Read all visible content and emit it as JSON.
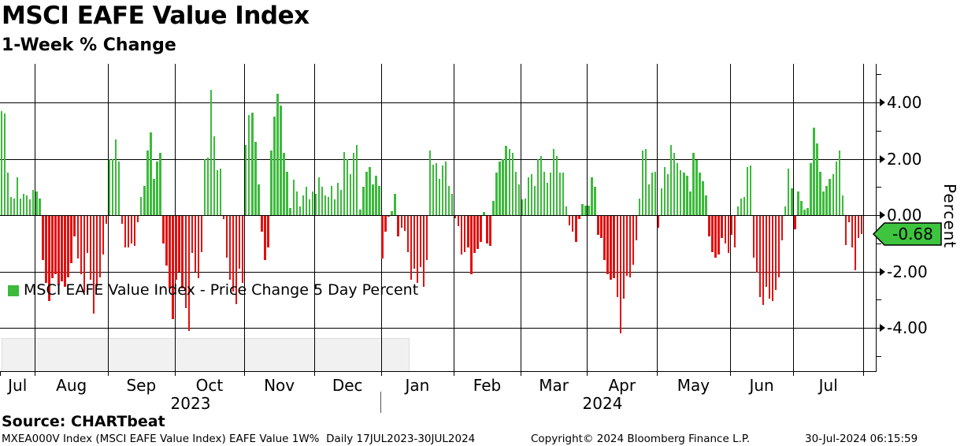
{
  "title": "MSCI EAFE Value Index",
  "subtitle": "1-Week % Change",
  "legend": {
    "label": "MSCI EAFE Value Index - Price Change 5 Day Percent"
  },
  "y_axis": {
    "title": "Percent",
    "tick_labels": [
      "4.00",
      "2.00",
      "0.00",
      "-2.00",
      "-4.00"
    ],
    "last_value_label": "-0.68"
  },
  "x_axis": {
    "year_labels": [
      "2023",
      "2024"
    ]
  },
  "footer": {
    "source": "Source: CHARTbeat",
    "description": "MXEA000V Index (MSCI EAFE Value Index) EAFE Value 1W%  Daily 17JUL2023-30JUL2024",
    "copyright": "Copyright© 2024 Bloomberg Finance L.P.",
    "timestamp": "30-Jul-2024 06:15:59"
  },
  "colors": {
    "positive": "#3cba3c",
    "negative": "#e21010",
    "badge_green": "#3ec43e",
    "grid": "#000000"
  },
  "chart_data": {
    "type": "bar",
    "title": "MSCI EAFE Value Index",
    "subtitle": "1-Week % Change",
    "ylabel": "Percent",
    "ylim": [
      -5.5,
      5.4
    ],
    "y_major_ticks": [
      4,
      2,
      0,
      -2,
      -4
    ],
    "y_minor_ticks": [
      5,
      3,
      1,
      -1,
      -3,
      -5
    ],
    "grid": true,
    "legend_position": "bottom-left",
    "series_name": "MSCI EAFE Value Index - Price Change 5 Day Percent",
    "date_range": "17JUL2023-30JUL2024",
    "last_value": -0.68,
    "months": [
      {
        "label": "Jul",
        "year": "2023",
        "days": 11
      },
      {
        "label": "Aug",
        "year": "2023",
        "days": 23
      },
      {
        "label": "Sep",
        "year": "2023",
        "days": 21
      },
      {
        "label": "Oct",
        "year": "2023",
        "days": 22
      },
      {
        "label": "Nov",
        "year": "2023",
        "days": 22
      },
      {
        "label": "Dec",
        "year": "2023",
        "days": 21
      },
      {
        "label": "Jan",
        "year": "2024",
        "days": 23
      },
      {
        "label": "Feb",
        "year": "2024",
        "days": 21
      },
      {
        "label": "Mar",
        "year": "2024",
        "days": 21
      },
      {
        "label": "Apr",
        "year": "2024",
        "days": 22
      },
      {
        "label": "May",
        "year": "2024",
        "days": 23
      },
      {
        "label": "Jun",
        "year": "2024",
        "days": 20
      },
      {
        "label": "Jul",
        "year": "2024",
        "days": 22
      }
    ],
    "values": [
      3.7,
      3.6,
      1.5,
      0.65,
      0.6,
      1.35,
      0.6,
      0.75,
      0.7,
      0.55,
      0.9,
      0.85,
      0.6,
      -1.6,
      -2.4,
      -3.05,
      -2.25,
      -2.1,
      -2.5,
      -2.35,
      -2.55,
      -2.2,
      -1.7,
      -0.75,
      -1.55,
      -2.1,
      -2.75,
      -1.35,
      -2.3,
      -3.5,
      -2.55,
      -2.2,
      -1.4,
      -0.3,
      2.0,
      2.0,
      2.7,
      1.9,
      -0.3,
      -1.15,
      -1.15,
      -1.0,
      -1.1,
      -0.25,
      0.65,
      1.05,
      2.3,
      2.95,
      1.3,
      1.9,
      2.2,
      -1.0,
      -1.8,
      -2.6,
      -3.7,
      -2.3,
      -2.0,
      -2.6,
      -3.3,
      -4.1,
      -1.35,
      -2.0,
      -2.25,
      -1.3,
      2.0,
      2.05,
      4.45,
      2.8,
      1.6,
      1.65,
      -0.15,
      -1.5,
      -2.3,
      -2.7,
      -3.15,
      -1.9,
      -2.4,
      2.5,
      3.55,
      3.65,
      2.6,
      1.1,
      -0.6,
      -1.6,
      -1.15,
      2.3,
      3.5,
      4.3,
      3.9,
      2.2,
      1.55,
      0.25,
      1.25,
      0.85,
      0.3,
      0.7,
      1.0,
      0.55,
      0.85,
      0.75,
      1.35,
      1.0,
      0.7,
      0.65,
      1.05,
      0.55,
      1.15,
      0.9,
      2.25,
      2.0,
      1.45,
      2.2,
      2.5,
      0.2,
      1.0,
      1.55,
      1.7,
      1.1,
      1.4,
      1.05,
      -1.55,
      -0.6,
      -0.05,
      0.15,
      0.75,
      -0.75,
      -0.45,
      -0.55,
      -1.3,
      -2.3,
      -1.9,
      -2.4,
      -1.85,
      -2.55,
      -1.6,
      2.3,
      1.8,
      1.85,
      1.3,
      1.75,
      1.9,
      1.05,
      0.75,
      -0.1,
      -0.4,
      -1.4,
      -1.3,
      -1.15,
      -2.1,
      -1.35,
      -1.2,
      -0.95,
      0.1,
      -1.0,
      -1.1,
      0.5,
      1.5,
      1.9,
      2.0,
      2.45,
      2.35,
      2.2,
      1.55,
      1.1,
      0.55,
      0.6,
      1.35,
      1.45,
      1.05,
      2.0,
      2.1,
      1.55,
      1.15,
      1.5,
      2.35,
      2.1,
      1.5,
      1.5,
      0.3,
      -0.35,
      -0.6,
      -0.95,
      -0.15,
      0.4,
      0.35,
      0.35,
      1.35,
      1.0,
      -0.7,
      -0.8,
      -1.6,
      -2.1,
      -2.3,
      -2.25,
      -2.9,
      -4.2,
      -2.95,
      -2.15,
      -2.2,
      -1.75,
      -0.9,
      0.6,
      2.3,
      2.35,
      1.1,
      1.5,
      1.55,
      -0.45,
      0.95,
      1.7,
      1.45,
      2.5,
      2.2,
      1.85,
      1.6,
      1.5,
      1.4,
      0.85,
      2.2,
      1.95,
      1.5,
      1.2,
      0.7,
      -0.75,
      -1.3,
      -1.5,
      -1.4,
      -0.8,
      -1.0,
      -1.35,
      -0.7,
      -1.15,
      0.3,
      0.6,
      0.65,
      1.7,
      1.75,
      -1.5,
      -2.05,
      -2.9,
      -3.2,
      -2.55,
      -2.95,
      -3.05,
      -2.65,
      -2.2,
      -0.9,
      0.3,
      1.65,
      0.95,
      -0.5,
      0.85,
      0.5,
      0.2,
      0.25,
      1.85,
      3.1,
      2.55,
      1.55,
      0.85,
      1.05,
      1.3,
      1.45,
      1.9,
      2.3,
      0.7,
      -1.05,
      -0.25,
      -1.15,
      -1.95,
      -0.8,
      -0.68
    ]
  }
}
